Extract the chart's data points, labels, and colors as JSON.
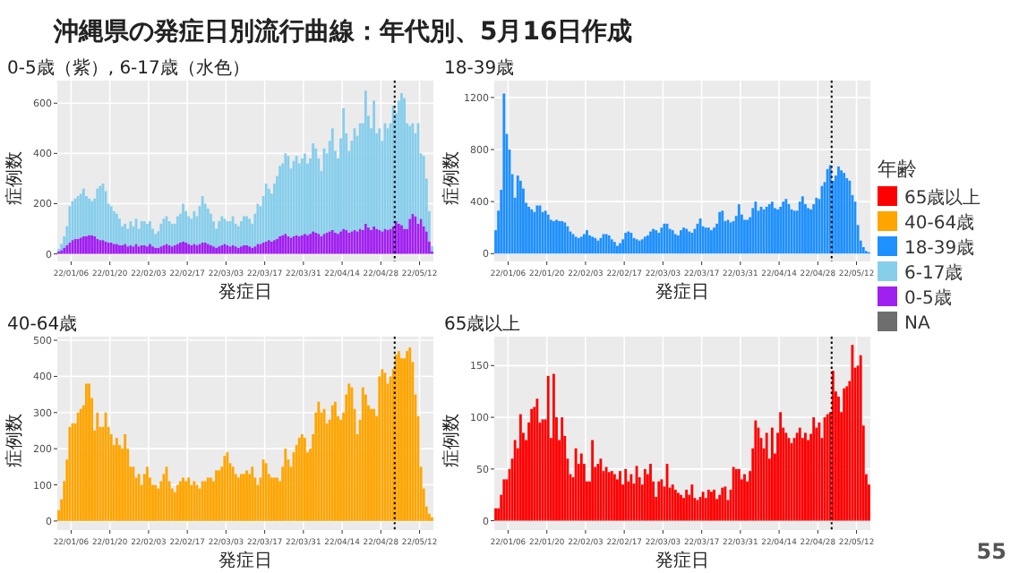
{
  "chart_data": [
    {
      "type": "other",
      "title": "沖縄県の発症日別流行曲線：年代別、5月16日作成",
      "legend": "right",
      "legend_title": "年齢",
      "annotations": [
        "55"
      ],
      "series": [
        {
          "name": "65歳以上",
          "color": "#ff0000"
        },
        {
          "name": "40-64歳",
          "color": "#ffa500"
        },
        {
          "name": "18-39歳",
          "color": "#1e90ff"
        },
        {
          "name": "6-17歳",
          "color": "#87ceeb"
        },
        {
          "name": "0-5歳",
          "color": "#a020f0"
        },
        {
          "name": "NA",
          "color": "#6e6e6e"
        }
      ]
    },
    {
      "type": "bar",
      "stacked": true,
      "title": "0-5歳（紫）, 6-17歳（水色）",
      "xlabel": "発症日",
      "ylabel": "症例数",
      "grid": true,
      "xlim": [
        "--01-01",
        "--05-17"
      ],
      "ylim": [
        -30,
        690
      ],
      "yticks": [
        0,
        200,
        400,
        600
      ],
      "xticks": [
        {
          "value": "--01-06",
          "label": "22/01/06"
        },
        {
          "value": "--01-20",
          "label": "22/01/20"
        },
        {
          "value": "--02-03",
          "label": "22/02/03"
        },
        {
          "value": "--02-17",
          "label": "22/02/17"
        },
        {
          "value": "--03-03",
          "label": "22/03/03"
        },
        {
          "value": "--03-17",
          "label": "22/03/17"
        },
        {
          "value": "--03-31",
          "label": "22/03/31"
        },
        {
          "value": "--04-14",
          "label": "22/04/14"
        },
        {
          "value": "--04-28",
          "label": "22/04/28"
        },
        {
          "value": "--05-12",
          "label": "22/05/12"
        }
      ],
      "ref_lines": [
        {
          "axis": "x",
          "value": "--05-03",
          "color": "#000000",
          "line_style": "dotted"
        }
      ],
      "x": [
        "--01-01",
        "--01-02",
        "--01-03",
        "--01-04",
        "--01-05",
        "--01-06",
        "--01-07",
        "--01-08",
        "--01-09",
        "--01-10",
        "--01-11",
        "--01-12",
        "--01-13",
        "--01-14",
        "--01-15",
        "--01-16",
        "--01-17",
        "--01-18",
        "--01-19",
        "--01-20",
        "--01-21",
        "--01-22",
        "--01-23",
        "--01-24",
        "--01-25",
        "--01-26",
        "--01-27",
        "--01-28",
        "--01-29",
        "--01-30",
        "--01-31",
        "--02-01",
        "--02-02",
        "--02-03",
        "--02-04",
        "--02-05",
        "--02-06",
        "--02-07",
        "--02-08",
        "--02-09",
        "--02-10",
        "--02-11",
        "--02-12",
        "--02-13",
        "--02-14",
        "--02-15",
        "--02-16",
        "--02-17",
        "--02-18",
        "--02-19",
        "--02-20",
        "--02-21",
        "--02-22",
        "--02-23",
        "--02-24",
        "--02-25",
        "--02-26",
        "--02-27",
        "--02-28",
        "--03-01",
        "--03-02",
        "--03-03",
        "--03-04",
        "--03-05",
        "--03-06",
        "--03-07",
        "--03-08",
        "--03-09",
        "--03-10",
        "--03-11",
        "--03-12",
        "--03-13",
        "--03-14",
        "--03-15",
        "--03-16",
        "--03-17",
        "--03-18",
        "--03-19",
        "--03-20",
        "--03-21",
        "--03-22",
        "--03-23",
        "--03-24",
        "--03-25",
        "--03-26",
        "--03-27",
        "--03-28",
        "--03-29",
        "--03-30",
        "--03-31",
        "--04-01",
        "--04-02",
        "--04-03",
        "--04-04",
        "--04-05",
        "--04-06",
        "--04-07",
        "--04-08",
        "--04-09",
        "--04-10",
        "--04-11",
        "--04-12",
        "--04-13",
        "--04-14",
        "--04-15",
        "--04-16",
        "--04-17",
        "--04-18",
        "--04-19",
        "--04-20",
        "--04-21",
        "--04-22",
        "--04-23",
        "--04-24",
        "--04-25",
        "--04-26",
        "--04-27",
        "--04-28",
        "--04-29",
        "--04-30",
        "--05-01",
        "--05-02",
        "--05-03",
        "--05-04",
        "--05-05",
        "--05-06",
        "--05-07",
        "--05-08",
        "--05-09",
        "--05-10",
        "--05-11",
        "--05-12",
        "--05-13",
        "--05-14",
        "--05-15",
        "--05-16"
      ],
      "series": [
        {
          "color": "#a020f0",
          "values": [
            10,
            15,
            25,
            35,
            45,
            55,
            60,
            60,
            65,
            70,
            70,
            75,
            75,
            70,
            60,
            55,
            55,
            50,
            45,
            45,
            40,
            40,
            35,
            35,
            40,
            30,
            35,
            30,
            40,
            30,
            35,
            35,
            30,
            40,
            30,
            25,
            25,
            30,
            35,
            40,
            35,
            30,
            35,
            40,
            45,
            50,
            45,
            40,
            35,
            40,
            35,
            40,
            45,
            45,
            40,
            35,
            30,
            25,
            30,
            35,
            40,
            35,
            30,
            35,
            30,
            25,
            30,
            35,
            35,
            30,
            25,
            30,
            40,
            40,
            45,
            50,
            55,
            50,
            55,
            60,
            70,
            75,
            80,
            70,
            65,
            70,
            75,
            70,
            75,
            80,
            75,
            80,
            90,
            85,
            80,
            70,
            80,
            85,
            90,
            95,
            85,
            80,
            90,
            100,
            95,
            85,
            90,
            95,
            90,
            100,
            95,
            120,
            105,
            95,
            110,
            100,
            95,
            90,
            100,
            95,
            100,
            110,
            130,
            120,
            115,
            100,
            100,
            140,
            160,
            150,
            120,
            140,
            110,
            90,
            50,
            10
          ]
        },
        {
          "color": "#87ceeb",
          "values": [
            10,
            25,
            45,
            75,
            145,
            155,
            160,
            170,
            175,
            190,
            160,
            145,
            135,
            150,
            200,
            215,
            225,
            200,
            155,
            145,
            130,
            120,
            105,
            75,
            80,
            70,
            95,
            80,
            100,
            70,
            95,
            95,
            90,
            90,
            70,
            55,
            65,
            90,
            105,
            110,
            95,
            90,
            85,
            110,
            115,
            150,
            125,
            110,
            105,
            130,
            115,
            150,
            185,
            155,
            140,
            125,
            100,
            75,
            100,
            115,
            100,
            95,
            100,
            115,
            90,
            85,
            100,
            115,
            115,
            110,
            95,
            130,
            160,
            150,
            185,
            230,
            205,
            190,
            225,
            250,
            280,
            285,
            320,
            320,
            275,
            300,
            315,
            290,
            305,
            320,
            285,
            300,
            350,
            335,
            300,
            260,
            340,
            315,
            360,
            405,
            325,
            300,
            370,
            480,
            385,
            325,
            360,
            405,
            380,
            420,
            425,
            530,
            445,
            405,
            500,
            380,
            405,
            360,
            420,
            405,
            420,
            480,
            430,
            490,
            525,
            520,
            420,
            370,
            360,
            330,
            400,
            260,
            280,
            210,
            120,
            20
          ]
        }
      ]
    },
    {
      "type": "bar",
      "title": "18-39歳",
      "xlabel": "発症日",
      "ylabel": "症例数",
      "grid": true,
      "xlim": [
        "--01-01",
        "--05-17"
      ],
      "ylim": [
        -60,
        1330
      ],
      "yticks": [
        0,
        400,
        800,
        1200
      ],
      "xticks": [
        {
          "value": "--01-06",
          "label": "22/01/06"
        },
        {
          "value": "--01-20",
          "label": "22/01/20"
        },
        {
          "value": "--02-03",
          "label": "22/02/03"
        },
        {
          "value": "--02-17",
          "label": "22/02/17"
        },
        {
          "value": "--03-03",
          "label": "22/03/03"
        },
        {
          "value": "--03-17",
          "label": "22/03/17"
        },
        {
          "value": "--03-31",
          "label": "22/03/31"
        },
        {
          "value": "--04-14",
          "label": "22/04/14"
        },
        {
          "value": "--04-28",
          "label": "22/04/28"
        },
        {
          "value": "--05-12",
          "label": "22/05/12"
        }
      ],
      "ref_lines": [
        {
          "axis": "x",
          "value": "--05-03",
          "color": "#000000",
          "line_style": "dotted"
        }
      ],
      "x": [
        "--01-01",
        "--01-02",
        "--01-03",
        "--01-04",
        "--01-05",
        "--01-06",
        "--01-07",
        "--01-08",
        "--01-09",
        "--01-10",
        "--01-11",
        "--01-12",
        "--01-13",
        "--01-14",
        "--01-15",
        "--01-16",
        "--01-17",
        "--01-18",
        "--01-19",
        "--01-20",
        "--01-21",
        "--01-22",
        "--01-23",
        "--01-24",
        "--01-25",
        "--01-26",
        "--01-27",
        "--01-28",
        "--01-29",
        "--01-30",
        "--01-31",
        "--02-01",
        "--02-02",
        "--02-03",
        "--02-04",
        "--02-05",
        "--02-06",
        "--02-07",
        "--02-08",
        "--02-09",
        "--02-10",
        "--02-11",
        "--02-12",
        "--02-13",
        "--02-14",
        "--02-15",
        "--02-16",
        "--02-17",
        "--02-18",
        "--02-19",
        "--02-20",
        "--02-21",
        "--02-22",
        "--02-23",
        "--02-24",
        "--02-25",
        "--02-26",
        "--02-27",
        "--02-28",
        "--03-01",
        "--03-02",
        "--03-03",
        "--03-04",
        "--03-05",
        "--03-06",
        "--03-07",
        "--03-08",
        "--03-09",
        "--03-10",
        "--03-11",
        "--03-12",
        "--03-13",
        "--03-14",
        "--03-15",
        "--03-16",
        "--03-17",
        "--03-18",
        "--03-19",
        "--03-20",
        "--03-21",
        "--03-22",
        "--03-23",
        "--03-24",
        "--03-25",
        "--03-26",
        "--03-27",
        "--03-28",
        "--03-29",
        "--03-30",
        "--03-31",
        "--04-01",
        "--04-02",
        "--04-03",
        "--04-04",
        "--04-05",
        "--04-06",
        "--04-07",
        "--04-08",
        "--04-09",
        "--04-10",
        "--04-11",
        "--04-12",
        "--04-13",
        "--04-14",
        "--04-15",
        "--04-16",
        "--04-17",
        "--04-18",
        "--04-19",
        "--04-20",
        "--04-21",
        "--04-22",
        "--04-23",
        "--04-24",
        "--04-25",
        "--04-26",
        "--04-27",
        "--04-28",
        "--04-29",
        "--04-30",
        "--05-01",
        "--05-02",
        "--05-03",
        "--05-04",
        "--05-05",
        "--05-06",
        "--05-07",
        "--05-08",
        "--05-09",
        "--05-10",
        "--05-11",
        "--05-12",
        "--05-13",
        "--05-14",
        "--05-15",
        "--05-16"
      ],
      "series": [
        {
          "color": "#1e90ff",
          "values": [
            180,
            330,
            490,
            1230,
            920,
            800,
            610,
            430,
            600,
            560,
            500,
            390,
            360,
            340,
            320,
            370,
            370,
            320,
            330,
            300,
            260,
            250,
            260,
            250,
            250,
            240,
            210,
            170,
            150,
            130,
            120,
            130,
            150,
            180,
            140,
            130,
            120,
            100,
            120,
            150,
            150,
            140,
            110,
            90,
            60,
            80,
            110,
            160,
            170,
            160,
            120,
            110,
            100,
            110,
            130,
            140,
            170,
            190,
            180,
            160,
            200,
            230,
            230,
            190,
            180,
            150,
            140,
            180,
            200,
            190,
            170,
            160,
            190,
            230,
            270,
            210,
            200,
            200,
            180,
            200,
            230,
            320,
            330,
            250,
            260,
            240,
            250,
            290,
            380,
            300,
            260,
            260,
            280,
            350,
            400,
            330,
            360,
            340,
            360,
            380,
            400,
            350,
            340,
            360,
            400,
            420,
            380,
            340,
            330,
            330,
            400,
            440,
            380,
            350,
            340,
            380,
            430,
            420,
            520,
            550,
            650,
            680,
            560,
            600,
            670,
            640,
            620,
            580,
            560,
            450,
            400,
            220,
            100,
            50,
            20,
            10
          ]
        }
      ]
    },
    {
      "type": "bar",
      "title": "40-64歳",
      "xlabel": "発症日",
      "ylabel": "症例数",
      "grid": true,
      "xlim": [
        "--01-01",
        "--05-17"
      ],
      "ylim": [
        -25,
        510
      ],
      "yticks": [
        0,
        100,
        200,
        300,
        400,
        500
      ],
      "xticks": [
        {
          "value": "--01-06",
          "label": "22/01/06"
        },
        {
          "value": "--01-20",
          "label": "22/01/20"
        },
        {
          "value": "--02-03",
          "label": "22/02/03"
        },
        {
          "value": "--02-17",
          "label": "22/02/17"
        },
        {
          "value": "--03-03",
          "label": "22/03/03"
        },
        {
          "value": "--03-17",
          "label": "22/03/17"
        },
        {
          "value": "--03-31",
          "label": "22/03/31"
        },
        {
          "value": "--04-14",
          "label": "22/04/14"
        },
        {
          "value": "--04-28",
          "label": "22/04/28"
        },
        {
          "value": "--05-12",
          "label": "22/05/12"
        }
      ],
      "ref_lines": [
        {
          "axis": "x",
          "value": "--05-03",
          "color": "#000000",
          "line_style": "dotted"
        }
      ],
      "x": [
        "--01-01",
        "--01-02",
        "--01-03",
        "--01-04",
        "--01-05",
        "--01-06",
        "--01-07",
        "--01-08",
        "--01-09",
        "--01-10",
        "--01-11",
        "--01-12",
        "--01-13",
        "--01-14",
        "--01-15",
        "--01-16",
        "--01-17",
        "--01-18",
        "--01-19",
        "--01-20",
        "--01-21",
        "--01-22",
        "--01-23",
        "--01-24",
        "--01-25",
        "--01-26",
        "--01-27",
        "--01-28",
        "--01-29",
        "--01-30",
        "--01-31",
        "--02-01",
        "--02-02",
        "--02-03",
        "--02-04",
        "--02-05",
        "--02-06",
        "--02-07",
        "--02-08",
        "--02-09",
        "--02-10",
        "--02-11",
        "--02-12",
        "--02-13",
        "--02-14",
        "--02-15",
        "--02-16",
        "--02-17",
        "--02-18",
        "--02-19",
        "--02-20",
        "--02-21",
        "--02-22",
        "--02-23",
        "--02-24",
        "--02-25",
        "--02-26",
        "--02-27",
        "--02-28",
        "--03-01",
        "--03-02",
        "--03-03",
        "--03-04",
        "--03-05",
        "--03-06",
        "--03-07",
        "--03-08",
        "--03-09",
        "--03-10",
        "--03-11",
        "--03-12",
        "--03-13",
        "--03-14",
        "--03-15",
        "--03-16",
        "--03-17",
        "--03-18",
        "--03-19",
        "--03-20",
        "--03-21",
        "--03-22",
        "--03-23",
        "--03-24",
        "--03-25",
        "--03-26",
        "--03-27",
        "--03-28",
        "--03-29",
        "--03-30",
        "--03-31",
        "--04-01",
        "--04-02",
        "--04-03",
        "--04-04",
        "--04-05",
        "--04-06",
        "--04-07",
        "--04-08",
        "--04-09",
        "--04-10",
        "--04-11",
        "--04-12",
        "--04-13",
        "--04-14",
        "--04-15",
        "--04-16",
        "--04-17",
        "--04-18",
        "--04-19",
        "--04-20",
        "--04-21",
        "--04-22",
        "--04-23",
        "--04-24",
        "--04-25",
        "--04-26",
        "--04-27",
        "--04-28",
        "--04-29",
        "--04-30",
        "--05-01",
        "--05-02",
        "--05-03",
        "--05-04",
        "--05-05",
        "--05-06",
        "--05-07",
        "--05-08",
        "--05-09",
        "--05-10",
        "--05-11",
        "--05-12",
        "--05-13",
        "--05-14",
        "--05-15",
        "--05-16"
      ],
      "series": [
        {
          "color": "#ffa500",
          "values": [
            30,
            60,
            110,
            170,
            260,
            270,
            270,
            300,
            310,
            320,
            380,
            380,
            340,
            250,
            300,
            260,
            260,
            300,
            260,
            240,
            210,
            230,
            210,
            200,
            240,
            200,
            150,
            150,
            120,
            130,
            100,
            130,
            150,
            120,
            100,
            100,
            90,
            110,
            130,
            150,
            110,
            90,
            80,
            100,
            110,
            120,
            110,
            120,
            100,
            110,
            100,
            90,
            110,
            110,
            120,
            120,
            110,
            140,
            140,
            150,
            180,
            190,
            160,
            150,
            130,
            120,
            130,
            130,
            140,
            130,
            150,
            120,
            100,
            120,
            170,
            160,
            130,
            120,
            120,
            120,
            110,
            150,
            200,
            170,
            150,
            190,
            210,
            230,
            240,
            230,
            190,
            200,
            240,
            300,
            330,
            300,
            310,
            270,
            280,
            320,
            330,
            290,
            280,
            300,
            350,
            380,
            370,
            310,
            240,
            280,
            370,
            350,
            320,
            310,
            310,
            290,
            400,
            420,
            410,
            380,
            400,
            420,
            460,
            470,
            450,
            450,
            470,
            480,
            440,
            350,
            290,
            150,
            90,
            40,
            20,
            10
          ]
        }
      ]
    },
    {
      "type": "bar",
      "title": "65歳以上",
      "xlabel": "発症日",
      "ylabel": "症例数",
      "grid": true,
      "xlim": [
        "--01-01",
        "--05-17"
      ],
      "ylim": [
        -9,
        178
      ],
      "yticks": [
        0,
        50,
        100,
        150
      ],
      "xticks": [
        {
          "value": "--01-06",
          "label": "22/01/06"
        },
        {
          "value": "--01-20",
          "label": "22/01/20"
        },
        {
          "value": "--02-03",
          "label": "22/02/03"
        },
        {
          "value": "--02-17",
          "label": "22/02/17"
        },
        {
          "value": "--03-03",
          "label": "22/03/03"
        },
        {
          "value": "--03-17",
          "label": "22/03/17"
        },
        {
          "value": "--03-31",
          "label": "22/03/31"
        },
        {
          "value": "--04-14",
          "label": "22/04/14"
        },
        {
          "value": "--04-28",
          "label": "22/04/28"
        },
        {
          "value": "--05-12",
          "label": "22/05/12"
        }
      ],
      "ref_lines": [
        {
          "axis": "x",
          "value": "--05-03",
          "color": "#000000",
          "line_style": "dotted"
        }
      ],
      "x": [
        "--01-01",
        "--01-02",
        "--01-03",
        "--01-04",
        "--01-05",
        "--01-06",
        "--01-07",
        "--01-08",
        "--01-09",
        "--01-10",
        "--01-11",
        "--01-12",
        "--01-13",
        "--01-14",
        "--01-15",
        "--01-16",
        "--01-17",
        "--01-18",
        "--01-19",
        "--01-20",
        "--01-21",
        "--01-22",
        "--01-23",
        "--01-24",
        "--01-25",
        "--01-26",
        "--01-27",
        "--01-28",
        "--01-29",
        "--01-30",
        "--01-31",
        "--02-01",
        "--02-02",
        "--02-03",
        "--02-04",
        "--02-05",
        "--02-06",
        "--02-07",
        "--02-08",
        "--02-09",
        "--02-10",
        "--02-11",
        "--02-12",
        "--02-13",
        "--02-14",
        "--02-15",
        "--02-16",
        "--02-17",
        "--02-18",
        "--02-19",
        "--02-20",
        "--02-21",
        "--02-22",
        "--02-23",
        "--02-24",
        "--02-25",
        "--02-26",
        "--02-27",
        "--02-28",
        "--03-01",
        "--03-02",
        "--03-03",
        "--03-04",
        "--03-05",
        "--03-06",
        "--03-07",
        "--03-08",
        "--03-09",
        "--03-10",
        "--03-11",
        "--03-12",
        "--03-13",
        "--03-14",
        "--03-15",
        "--03-16",
        "--03-17",
        "--03-18",
        "--03-19",
        "--03-20",
        "--03-21",
        "--03-22",
        "--03-23",
        "--03-24",
        "--03-25",
        "--03-26",
        "--03-27",
        "--03-28",
        "--03-29",
        "--03-30",
        "--03-31",
        "--04-01",
        "--04-02",
        "--04-03",
        "--04-04",
        "--04-05",
        "--04-06",
        "--04-07",
        "--04-08",
        "--04-09",
        "--04-10",
        "--04-11",
        "--04-12",
        "--04-13",
        "--04-14",
        "--04-15",
        "--04-16",
        "--04-17",
        "--04-18",
        "--04-19",
        "--04-20",
        "--04-21",
        "--04-22",
        "--04-23",
        "--04-24",
        "--04-25",
        "--04-26",
        "--04-27",
        "--04-28",
        "--04-29",
        "--04-30",
        "--05-01",
        "--05-02",
        "--05-03",
        "--05-04",
        "--05-05",
        "--05-06",
        "--05-07",
        "--05-08",
        "--05-09",
        "--05-10",
        "--05-11",
        "--05-12",
        "--05-13",
        "--05-14",
        "--05-15",
        "--05-16"
      ],
      "series": [
        {
          "color": "#ff0000",
          "values": [
            12,
            12,
            25,
            40,
            40,
            50,
            60,
            78,
            70,
            103,
            85,
            78,
            95,
            108,
            110,
            118,
            95,
            98,
            98,
            140,
            80,
            142,
            100,
            78,
            100,
            82,
            60,
            45,
            42,
            70,
            55,
            65,
            55,
            38,
            38,
            78,
            52,
            55,
            60,
            48,
            52,
            47,
            48,
            45,
            40,
            48,
            35,
            50,
            38,
            45,
            36,
            53,
            42,
            35,
            50,
            45,
            55,
            38,
            23,
            38,
            40,
            33,
            55,
            32,
            35,
            30,
            27,
            25,
            22,
            30,
            25,
            35,
            22,
            20,
            23,
            28,
            22,
            30,
            28,
            30,
            21,
            25,
            32,
            33,
            20,
            30,
            52,
            50,
            50,
            40,
            45,
            38,
            48,
            70,
            97,
            90,
            80,
            70,
            85,
            60,
            90,
            65,
            85,
            105,
            90,
            85,
            80,
            75,
            80,
            85,
            90,
            80,
            85,
            78,
            84,
            100,
            90,
            95,
            80,
            100,
            103,
            105,
            145,
            125,
            120,
            105,
            128,
            130,
            135,
            170,
            148,
            150,
            160,
            92,
            45,
            35
          ]
        }
      ]
    }
  ]
}
